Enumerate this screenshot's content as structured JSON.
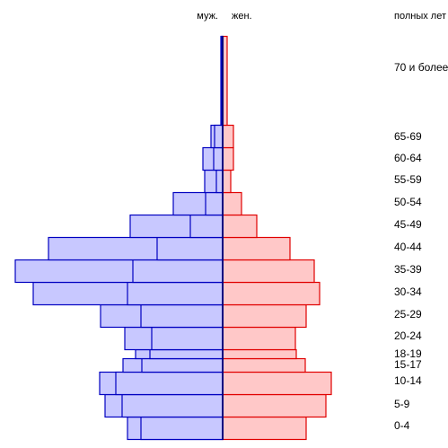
{
  "chart_data": {
    "type": "bar",
    "orientation": "horizontal-population-pyramid",
    "header": {
      "male": "муж.",
      "female": "жен.",
      "age_unit": "полных лет"
    },
    "colors": {
      "male_fill": "#c8c8ff",
      "male_stroke": "#0000c0",
      "female_fill": "#ffc8c8",
      "female_stroke": "#e00000"
    },
    "groups": [
      {
        "label": "0-4",
        "male_outer": 106,
        "male_inner": 91,
        "female_outer": 93
      },
      {
        "label": "5-9",
        "male_outer": 131,
        "male_inner": 112,
        "female_outer": 115
      },
      {
        "label": "10-14",
        "male_outer": 137,
        "male_inner": 119,
        "female_outer": 121
      },
      {
        "label": "15-17",
        "male_outer": 111,
        "male_inner": 90,
        "female_outer": 92
      },
      {
        "label": "18-19",
        "male_outer": 97,
        "male_inner": 81,
        "female_outer": 82
      },
      {
        "label": "20-24",
        "male_outer": 109,
        "male_inner": 79,
        "female_outer": 81
      },
      {
        "label": "25-29",
        "male_outer": 136,
        "male_inner": 91,
        "female_outer": 93
      },
      {
        "label": "30-34",
        "male_outer": 211,
        "male_inner": 106,
        "female_outer": 108
      },
      {
        "label": "35-39",
        "male_outer": 231,
        "male_inner": 100,
        "female_outer": 102
      },
      {
        "label": "40-44",
        "male_outer": 194,
        "male_inner": 73,
        "female_outer": 75
      },
      {
        "label": "45-49",
        "male_outer": 103,
        "male_inner": 36,
        "female_outer": 38
      },
      {
        "label": "50-54",
        "male_outer": 55,
        "male_inner": 19,
        "female_outer": 21
      },
      {
        "label": "55-59",
        "male_outer": 20,
        "male_inner": 7,
        "female_outer": 9
      },
      {
        "label": "60-64",
        "male_outer": 22,
        "male_inner": 10,
        "female_outer": 12
      },
      {
        "label": "65-69",
        "male_outer": 13,
        "male_inner": 9,
        "female_outer": 12
      },
      {
        "label": "70 и более",
        "male_outer": 2,
        "male_inner": 1,
        "female_outer": 5
      }
    ]
  }
}
